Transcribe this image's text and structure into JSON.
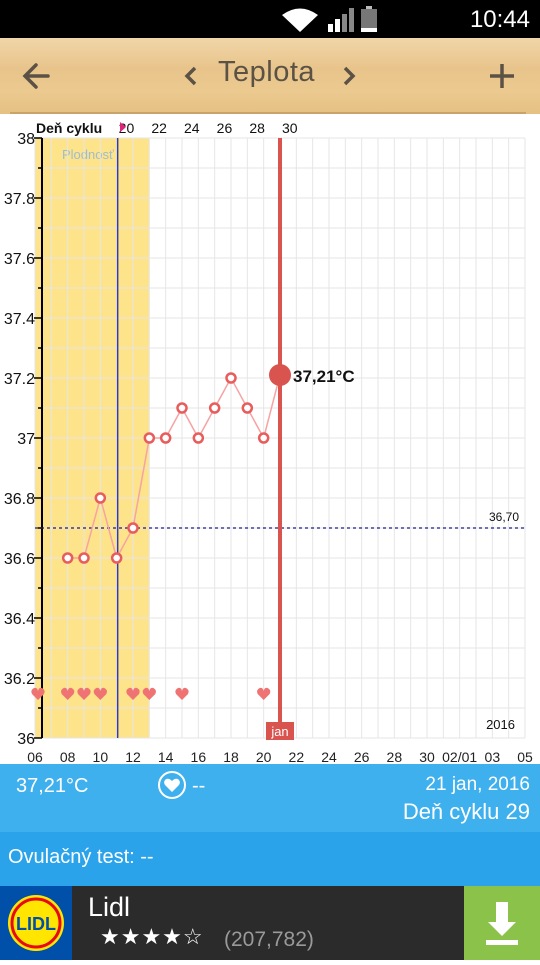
{
  "status_bar": {
    "time": "10:44",
    "icons": [
      "wifi-icon",
      "signal-icon",
      "battery-icon"
    ]
  },
  "app_bar": {
    "title": "Teplota",
    "back_icon": "arrow-left-icon",
    "prev_icon": "chevron-left-icon",
    "next_icon": "chevron-right-icon",
    "add_icon": "plus-icon"
  },
  "chart_data": {
    "type": "line",
    "top_axis_title": "Deň cyklu",
    "top_ticks": [
      "20",
      "22",
      "24",
      "26",
      "28",
      "30"
    ],
    "bottom_ticks": [
      "06",
      "08",
      "10",
      "12",
      "14",
      "16",
      "18",
      "20",
      "22",
      "24",
      "26",
      "28",
      "30",
      "02/01",
      "03",
      "05"
    ],
    "y_ticks": [
      "38",
      "37.8",
      "37.6",
      "37.4",
      "37.2",
      "37",
      "36.8",
      "36.6",
      "36.4",
      "36.2",
      "36"
    ],
    "ylim": [
      36,
      38
    ],
    "x_day_range": [
      6,
      36
    ],
    "fertility_label": "Plodnosť",
    "fertility_range": [
      6,
      13
    ],
    "ovulation_day": 11,
    "coverline_value": 36.7,
    "coverline_label": "36,70",
    "year_label": "2016",
    "month_label": "jan",
    "selected_day": 21,
    "selected_value": 37.21,
    "selected_label": "37,21°C",
    "x": [
      8,
      9,
      10,
      11,
      12,
      13,
      14,
      15,
      16,
      17,
      18,
      19,
      20,
      21
    ],
    "values": [
      36.6,
      36.6,
      36.8,
      36.6,
      36.7,
      37.0,
      37.0,
      37.1,
      37.0,
      37.1,
      37.2,
      37.1,
      37.0,
      37.21
    ],
    "heart_days": [
      6,
      8,
      9,
      10,
      12,
      13,
      15,
      20
    ],
    "colors": {
      "fertile": "#fde38a",
      "line": "#f6a3a3",
      "marker": "#e85c5c",
      "selected": "#d9534f",
      "coverline": "#1a1a8c",
      "grid": "#e6e6e6"
    }
  },
  "info_bar": {
    "temperature": "37,21°C",
    "heart_value": "--",
    "date": "21 jan, 2016",
    "cycle_day": "Deň cyklu 29"
  },
  "ovulation": {
    "label": "Ovulačný test: --"
  },
  "ad": {
    "app_name": "Lidl",
    "rating_stars": "★★★★☆",
    "rating_count": "(207,782)",
    "logo_text": "LIDL",
    "download_icon": "download-icon"
  }
}
